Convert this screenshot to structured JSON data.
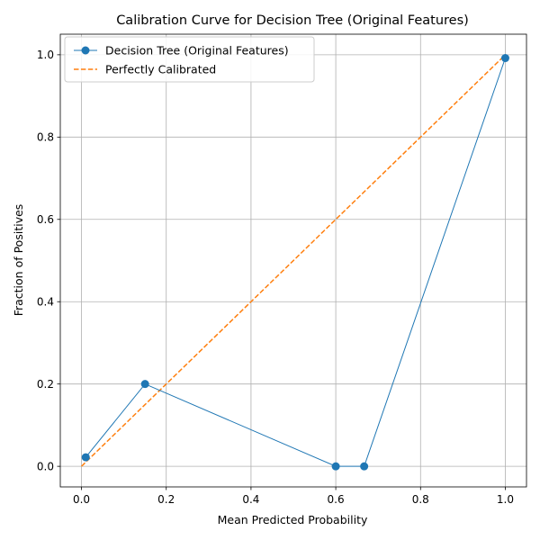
{
  "chart_data": {
    "type": "line",
    "title": "Calibration Curve for Decision Tree (Original Features)",
    "xlabel": "Mean Predicted Probability",
    "ylabel": "Fraction of Positives",
    "xlim": [
      -0.05,
      1.05
    ],
    "ylim": [
      -0.05,
      1.05
    ],
    "xticks": [
      0.0,
      0.2,
      0.4,
      0.6,
      0.8,
      1.0
    ],
    "yticks": [
      0.0,
      0.2,
      0.4,
      0.6,
      0.8,
      1.0
    ],
    "xtick_labels": [
      "0.0",
      "0.2",
      "0.4",
      "0.6",
      "0.8",
      "1.0"
    ],
    "ytick_labels": [
      "0.0",
      "0.2",
      "0.4",
      "0.6",
      "0.8",
      "1.0"
    ],
    "grid": true,
    "legend_position": "top-left",
    "series": [
      {
        "name": "Decision Tree (Original Features)",
        "style": "solid-with-circle-markers",
        "color": "#1f77b4",
        "x": [
          0.01,
          0.15,
          0.6,
          0.667,
          1.0
        ],
        "y": [
          0.022,
          0.2,
          0.0,
          0.0,
          0.992
        ]
      },
      {
        "name": "Perfectly Calibrated",
        "style": "dashed",
        "color": "#ff7f0e",
        "x": [
          0.0,
          1.0
        ],
        "y": [
          0.0,
          1.0
        ]
      }
    ]
  }
}
